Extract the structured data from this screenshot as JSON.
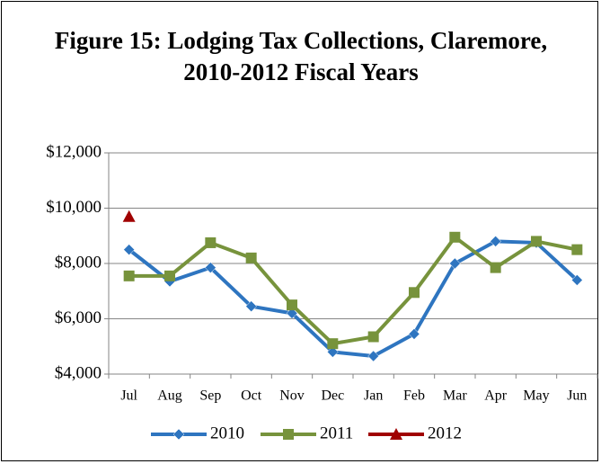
{
  "chart_data": {
    "type": "line",
    "title": "Figure 15: Lodging Tax Collections, Claremore, 2010-2012 Fiscal Years",
    "categories": [
      "Jul",
      "Aug",
      "Sep",
      "Oct",
      "Nov",
      "Dec",
      "Jan",
      "Feb",
      "Mar",
      "Apr",
      "May",
      "Jun"
    ],
    "series": [
      {
        "name": "2010",
        "color": "#2e75c0",
        "marker": "diamond",
        "values": [
          8500,
          7350,
          7850,
          6450,
          6200,
          4800,
          4650,
          5450,
          8000,
          8800,
          8750,
          7400
        ]
      },
      {
        "name": "2011",
        "color": "#77933c",
        "marker": "square",
        "values": [
          7550,
          7550,
          8750,
          8200,
          6500,
          5100,
          5350,
          6950,
          8950,
          7850,
          8800,
          8500
        ]
      },
      {
        "name": "2012",
        "color": "#a00000",
        "marker": "triangle",
        "values": [
          9700,
          null,
          null,
          null,
          null,
          null,
          null,
          null,
          null,
          null,
          null,
          null
        ]
      }
    ],
    "ylim": [
      4000,
      12000
    ],
    "yticks": [
      {
        "value": 4000,
        "label": "$4,000"
      },
      {
        "value": 6000,
        "label": "$6,000"
      },
      {
        "value": 8000,
        "label": "$8,000"
      },
      {
        "value": 10000,
        "label": "$10,000"
      },
      {
        "value": 12000,
        "label": "$12,000"
      }
    ],
    "grid": true,
    "legend": "bottom"
  }
}
